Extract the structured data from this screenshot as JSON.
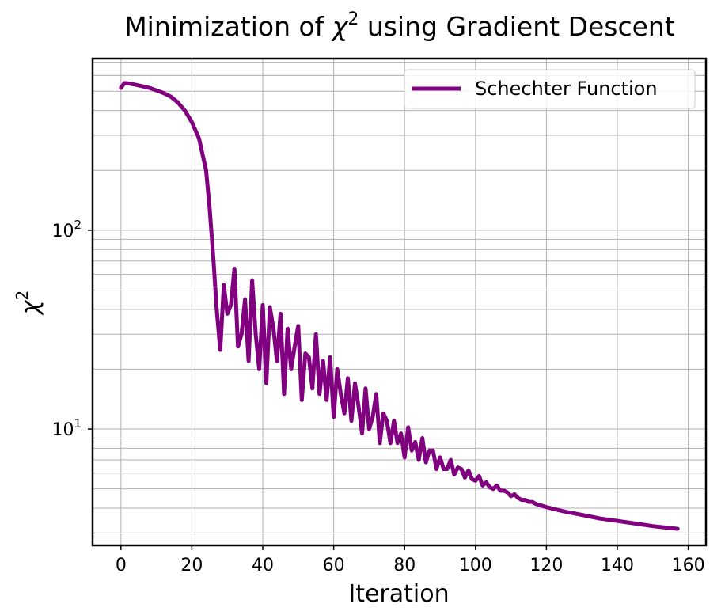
{
  "chart_data": {
    "type": "line",
    "title_prefix": "Minimization of ",
    "title_symbol": "χ",
    "title_symbol_sup": "2",
    "title_suffix": " using Gradient Descent",
    "xlabel": "Iteration",
    "ylabel_symbol": "χ",
    "ylabel_sup": "2",
    "xlim": [
      -8,
      165
    ],
    "ylim": [
      2.6,
      730
    ],
    "yscale": "log",
    "grid": true,
    "grid_minor": true,
    "legend_position": "top-right",
    "x_ticks": [
      0,
      20,
      40,
      60,
      80,
      100,
      120,
      140,
      160
    ],
    "y_ticks": [
      {
        "value": 10,
        "base": "10",
        "exp": "1"
      },
      {
        "value": 100,
        "base": "10",
        "exp": "2"
      }
    ],
    "color": "#800080",
    "series": [
      {
        "name": "Schechter Function",
        "x": [
          0,
          1,
          2,
          4,
          6,
          8,
          10,
          12,
          14,
          16,
          18,
          20,
          22,
          24,
          25,
          26,
          27,
          28,
          29,
          30,
          31,
          32,
          33,
          34,
          35,
          36,
          37,
          38,
          39,
          40,
          41,
          42,
          43,
          44,
          45,
          46,
          47,
          48,
          49,
          50,
          51,
          52,
          53,
          54,
          55,
          56,
          57,
          58,
          59,
          60,
          61,
          62,
          63,
          64,
          65,
          66,
          67,
          68,
          69,
          70,
          71,
          72,
          73,
          74,
          75,
          76,
          77,
          78,
          79,
          80,
          81,
          82,
          83,
          84,
          85,
          86,
          87,
          88,
          89,
          90,
          91,
          92,
          93,
          94,
          95,
          96,
          97,
          98,
          99,
          100,
          101,
          102,
          103,
          104,
          105,
          106,
          107,
          108,
          109,
          110,
          111,
          112,
          113,
          114,
          115,
          116,
          117,
          118,
          119,
          120,
          125,
          130,
          135,
          140,
          145,
          150,
          157
        ],
        "y": [
          520,
          550,
          548,
          540,
          530,
          520,
          505,
          490,
          470,
          440,
          400,
          350,
          290,
          200,
          130,
          75,
          40,
          25,
          53,
          38,
          42,
          64,
          26,
          30,
          45,
          22,
          56,
          30,
          20,
          42,
          17,
          41,
          32,
          22,
          38,
          15,
          32,
          20,
          26,
          33,
          14,
          24,
          23,
          16,
          30,
          15,
          22,
          14,
          23,
          11.5,
          20,
          15,
          12,
          18,
          11,
          17,
          13,
          9.5,
          16,
          10,
          11.5,
          15,
          8.5,
          12,
          11,
          8.5,
          11,
          8.5,
          9.5,
          7.2,
          10.2,
          7.8,
          8.6,
          7,
          9,
          6.8,
          7.8,
          7.8,
          6.3,
          7.2,
          6.3,
          6.3,
          7,
          5.9,
          6.4,
          6.3,
          5.7,
          6.2,
          5.6,
          5.5,
          5.8,
          5.2,
          5.4,
          5.1,
          5,
          5.2,
          4.9,
          4.9,
          4.8,
          4.6,
          4.7,
          4.5,
          4.4,
          4.4,
          4.3,
          4.3,
          4.2,
          4.15,
          4.1,
          4.05,
          3.85,
          3.7,
          3.55,
          3.45,
          3.35,
          3.25,
          3.15
        ]
      }
    ]
  }
}
